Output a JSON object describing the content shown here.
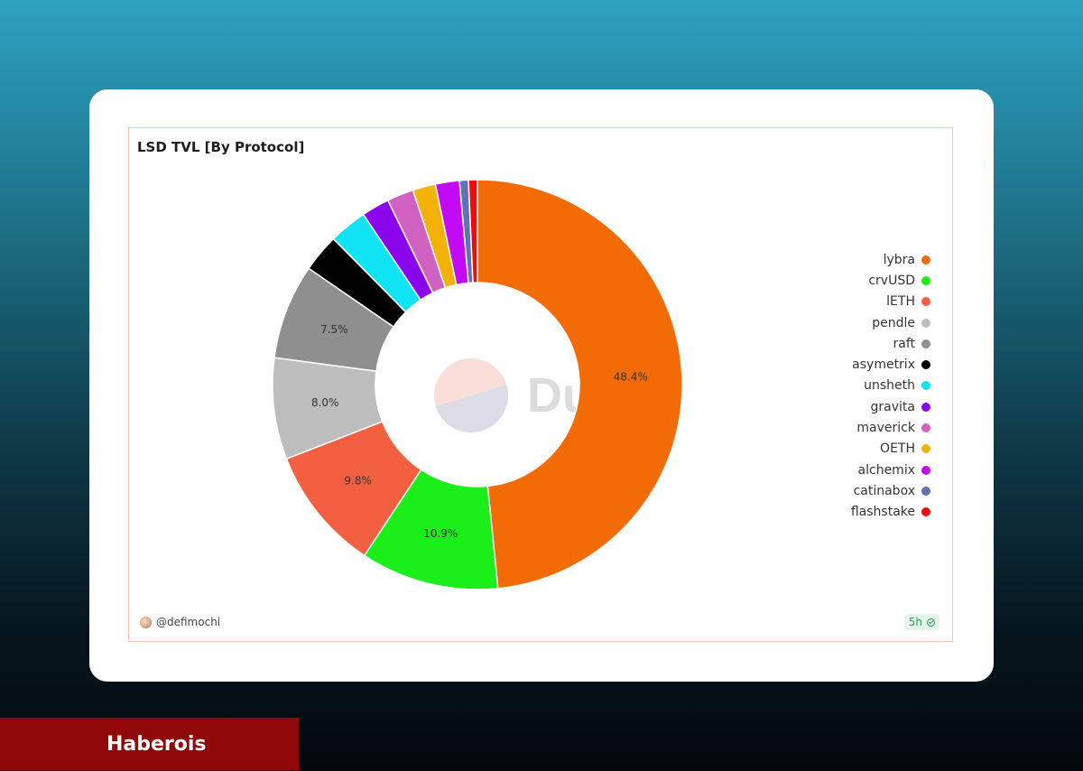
{
  "chart_data": {
    "type": "pie",
    "title": "LSD TVL [By Protocol]",
    "categories": [
      "lybra",
      "crvUSD",
      "lETH",
      "pendle",
      "raft",
      "asymetrix",
      "unsheth",
      "gravita",
      "maverick",
      "OETH",
      "alchemix",
      "catinabox",
      "flashstake"
    ],
    "values": [
      48.4,
      10.9,
      9.8,
      8.0,
      7.5,
      3.0,
      3.0,
      2.2,
      2.1,
      1.8,
      1.9,
      0.7,
      0.7
    ],
    "value_labels": [
      "48.4%",
      "10.9%",
      "9.8%",
      "8.0%",
      "7.5%",
      "",
      "",
      "",
      "",
      "",
      "",
      "",
      ""
    ],
    "colors": [
      "#f26b05",
      "#1aef1a",
      "#f26041",
      "#bdbdbd",
      "#8f8f8f",
      "#000000",
      "#10e3f3",
      "#8a05ec",
      "#d262c2",
      "#f5b206",
      "#c30af7",
      "#5f73b3",
      "#f00c0c"
    ],
    "legend_position": "right",
    "donut": true
  },
  "watermark": {
    "text": "Dune"
  },
  "footer": {
    "author": "@defimochi",
    "refresh": "5h"
  },
  "banner": {
    "text": "Haberois"
  }
}
